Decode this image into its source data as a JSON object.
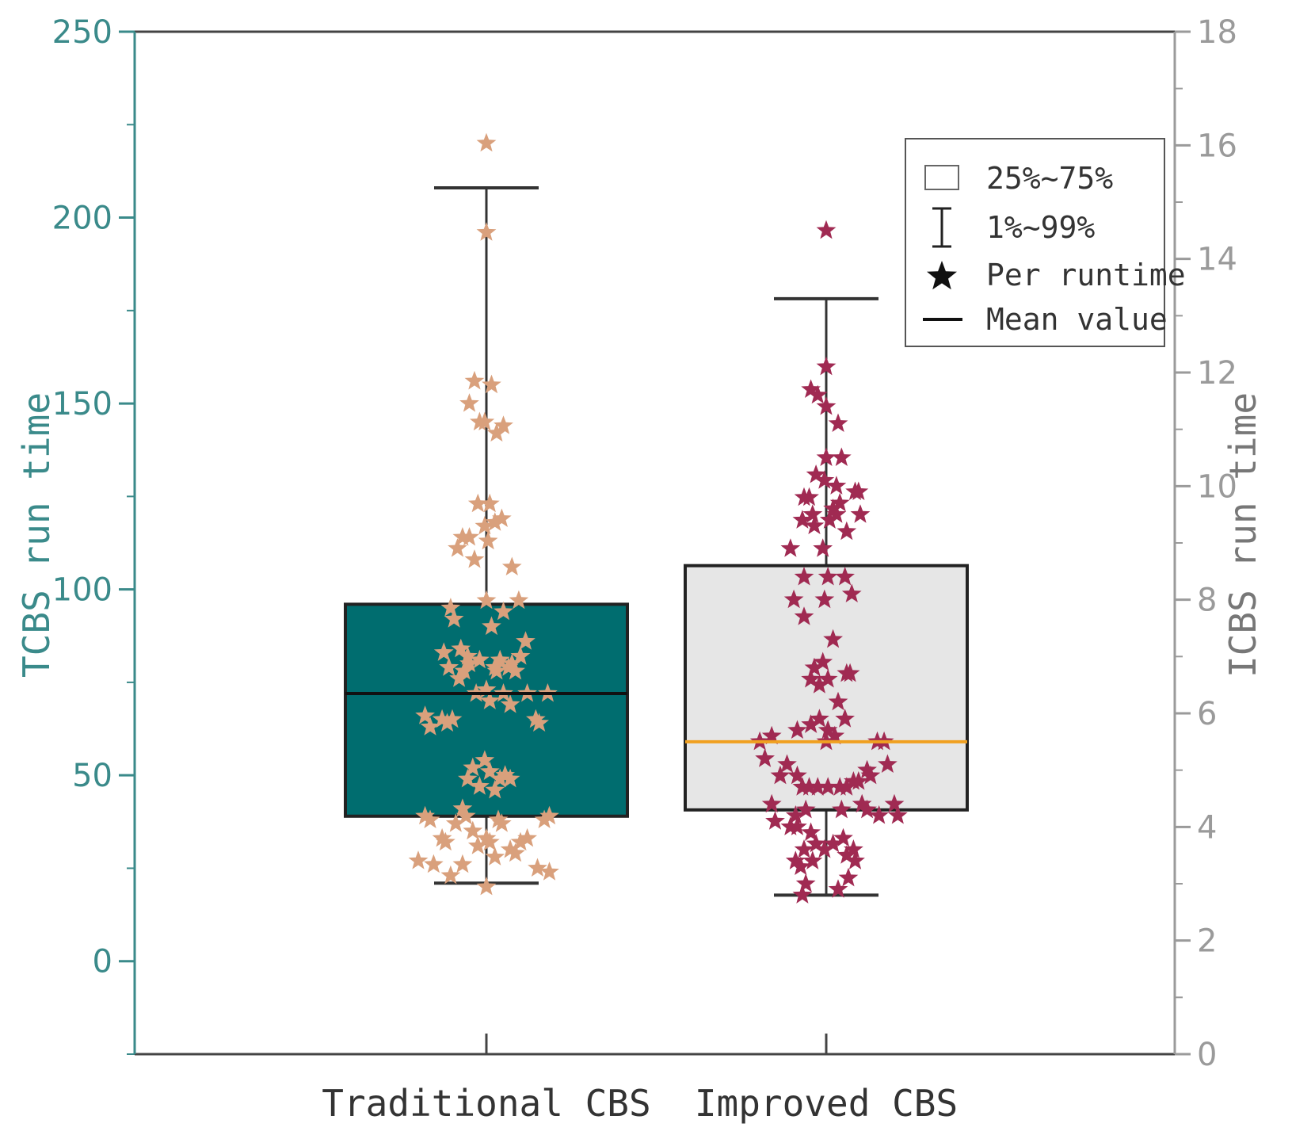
{
  "colors": {
    "left_axis": "#3a8a8a",
    "right_axis": "#9a9a9a",
    "frame": "#444444",
    "box_traditional": "#006d6f",
    "box_improved": "#e6e6e6",
    "points_traditional": "#d9a07c",
    "points_improved": "#a02a52",
    "mean_traditional": "#111111",
    "mean_improved": "#f0a020",
    "whisker": "#333333"
  },
  "chart_data": {
    "type": "box",
    "y_left": {
      "label": "TCBS run time",
      "ylim": [
        -25,
        250
      ],
      "ticks": [
        0,
        50,
        100,
        150,
        200,
        250
      ]
    },
    "y_right": {
      "label": "ICBS run time",
      "ylim": [
        0,
        18
      ],
      "ticks": [
        0,
        2,
        4,
        6,
        8,
        10,
        12,
        14,
        16,
        18
      ]
    },
    "categories": [
      "Traditional CBS",
      "Improved CBS"
    ],
    "legend": {
      "position": "top-right",
      "items": [
        {
          "symbol": "box",
          "label": "25%~75%"
        },
        {
          "symbol": "whisker",
          "label": "1%~99%"
        },
        {
          "symbol": "star",
          "label": "Per runtime"
        },
        {
          "symbol": "line",
          "label": "Mean value"
        }
      ]
    },
    "series": [
      {
        "name": "Traditional CBS",
        "axis": "left",
        "q1": 39,
        "q3": 96,
        "mean": 72,
        "whisker_low": 21,
        "whisker_high": 208,
        "points": [
          [
            0,
            220
          ],
          [
            0,
            196
          ],
          [
            -0.07,
            156
          ],
          [
            0.03,
            155
          ],
          [
            -0.1,
            150
          ],
          [
            -0.04,
            145
          ],
          [
            -0.01,
            145
          ],
          [
            0.1,
            144
          ],
          [
            0.06,
            142
          ],
          [
            -0.05,
            123
          ],
          [
            0.02,
            123
          ],
          [
            -0.01,
            117
          ],
          [
            0.05,
            118
          ],
          [
            0.09,
            119
          ],
          [
            -0.14,
            114
          ],
          [
            -0.1,
            114
          ],
          [
            0.01,
            113
          ],
          [
            -0.07,
            108
          ],
          [
            0.15,
            106
          ],
          [
            -0.17,
            111
          ],
          [
            -0.21,
            95
          ],
          [
            -0.19,
            92
          ],
          [
            0.1,
            94
          ],
          [
            0.0,
            97
          ],
          [
            0.19,
            97
          ],
          [
            0.03,
            90
          ],
          [
            0.23,
            86
          ],
          [
            -0.25,
            83
          ],
          [
            -0.22,
            79
          ],
          [
            -0.15,
            84
          ],
          [
            -0.11,
            82
          ],
          [
            -0.04,
            81
          ],
          [
            0.05,
            79
          ],
          [
            0.08,
            81
          ],
          [
            0.15,
            80
          ],
          [
            0.2,
            82
          ],
          [
            -0.16,
            76
          ],
          [
            -0.13,
            78
          ],
          [
            -0.1,
            80
          ],
          [
            0.06,
            78
          ],
          [
            0.13,
            79
          ],
          [
            0.17,
            78
          ],
          [
            -0.06,
            72
          ],
          [
            0.0,
            73
          ],
          [
            0.02,
            70
          ],
          [
            0.1,
            72
          ],
          [
            0.14,
            69
          ],
          [
            0.24,
            72
          ],
          [
            0.36,
            72
          ],
          [
            -0.36,
            66
          ],
          [
            -0.33,
            63
          ],
          [
            -0.26,
            65
          ],
          [
            -0.23,
            64
          ],
          [
            -0.2,
            65
          ],
          [
            0.29,
            65
          ],
          [
            0.31,
            64
          ],
          [
            -0.11,
            49
          ],
          [
            -0.08,
            52
          ],
          [
            -0.04,
            47
          ],
          [
            -0.01,
            54
          ],
          [
            0.02,
            51
          ],
          [
            0.05,
            46
          ],
          [
            0.08,
            49
          ],
          [
            0.11,
            50
          ],
          [
            0.14,
            49
          ],
          [
            -0.36,
            39
          ],
          [
            -0.33,
            38
          ],
          [
            -0.14,
            41
          ],
          [
            -0.12,
            39
          ],
          [
            0.07,
            38
          ],
          [
            0.09,
            37
          ],
          [
            0.34,
            38
          ],
          [
            0.37,
            39
          ],
          [
            -0.18,
            37
          ],
          [
            -0.26,
            33
          ],
          [
            -0.24,
            32
          ],
          [
            -0.08,
            35
          ],
          [
            -0.05,
            31
          ],
          [
            0.0,
            33
          ],
          [
            0.02,
            32
          ],
          [
            0.05,
            28
          ],
          [
            0.14,
            30
          ],
          [
            0.17,
            29
          ],
          [
            0.2,
            32
          ],
          [
            0.24,
            33
          ],
          [
            -0.4,
            27
          ],
          [
            -0.31,
            26
          ],
          [
            -0.21,
            23
          ],
          [
            -0.14,
            26
          ],
          [
            0.3,
            25
          ],
          [
            0.37,
            24
          ],
          [
            0.0,
            20
          ]
        ]
      },
      {
        "name": "Improved CBS",
        "axis": "right",
        "q1": 4.3,
        "q3": 8.6,
        "mean": 5.5,
        "whisker_low": 2.8,
        "whisker_high": 13.3,
        "points": [
          [
            0,
            14.5
          ],
          [
            0,
            12.1
          ],
          [
            -0.09,
            11.7
          ],
          [
            -0.05,
            11.6
          ],
          [
            0,
            11.4
          ],
          [
            0.07,
            11.1
          ],
          [
            0.09,
            10.5
          ],
          [
            0,
            10.5
          ],
          [
            -0.06,
            10.2
          ],
          [
            -0.01,
            10.1
          ],
          [
            0.06,
            10.0
          ],
          [
            0.17,
            9.9
          ],
          [
            0.19,
            9.9
          ],
          [
            -0.13,
            9.8
          ],
          [
            -0.1,
            9.8
          ],
          [
            0.08,
            9.7
          ],
          [
            0.04,
            9.6
          ],
          [
            -0.08,
            9.5
          ],
          [
            -0.14,
            9.4
          ],
          [
            0.02,
            9.4
          ],
          [
            0.06,
            9.5
          ],
          [
            0.2,
            9.5
          ],
          [
            -0.07,
            9.3
          ],
          [
            0.12,
            9.2
          ],
          [
            -0.02,
            8.9
          ],
          [
            -0.21,
            8.9
          ],
          [
            -0.13,
            8.4
          ],
          [
            0.01,
            8.4
          ],
          [
            0.11,
            8.4
          ],
          [
            0.15,
            8.1
          ],
          [
            -0.19,
            8.0
          ],
          [
            -0.01,
            8.0
          ],
          [
            -0.13,
            7.7
          ],
          [
            0.04,
            7.3
          ],
          [
            -0.02,
            6.9
          ],
          [
            -0.07,
            6.8
          ],
          [
            0.12,
            6.7
          ],
          [
            0.14,
            6.7
          ],
          [
            -0.09,
            6.6
          ],
          [
            0.01,
            6.6
          ],
          [
            -0.04,
            6.5
          ],
          [
            0.07,
            6.2
          ],
          [
            -0.04,
            5.9
          ],
          [
            0.01,
            5.7
          ],
          [
            0.11,
            5.9
          ],
          [
            -0.17,
            5.7
          ],
          [
            -0.09,
            5.8
          ],
          [
            0.05,
            5.6
          ],
          [
            0.0,
            5.5
          ],
          [
            -0.32,
            5.6
          ],
          [
            -0.39,
            5.5
          ],
          [
            -0.36,
            5.2
          ],
          [
            0.3,
            5.5
          ],
          [
            0.34,
            5.5
          ],
          [
            -0.23,
            5.1
          ],
          [
            -0.27,
            4.9
          ],
          [
            -0.17,
            4.9
          ],
          [
            0.24,
            5.0
          ],
          [
            0.26,
            4.9
          ],
          [
            0.36,
            5.1
          ],
          [
            -0.14,
            4.7
          ],
          [
            -0.1,
            4.7
          ],
          [
            -0.05,
            4.7
          ],
          [
            0.01,
            4.7
          ],
          [
            0.08,
            4.7
          ],
          [
            0.12,
            4.7
          ],
          [
            0.16,
            4.8
          ],
          [
            0.19,
            4.8
          ],
          [
            -0.32,
            4.4
          ],
          [
            -0.3,
            4.1
          ],
          [
            -0.18,
            4.2
          ],
          [
            -0.12,
            4.3
          ],
          [
            0.09,
            4.3
          ],
          [
            0.21,
            4.4
          ],
          [
            0.24,
            4.3
          ],
          [
            0.31,
            4.2
          ],
          [
            0.4,
            4.4
          ],
          [
            0.42,
            4.2
          ],
          [
            -0.21,
            4.0
          ],
          [
            -0.17,
            4.0
          ],
          [
            -0.09,
            3.9
          ],
          [
            -0.13,
            3.6
          ],
          [
            -0.06,
            3.7
          ],
          [
            -0.01,
            3.6
          ],
          [
            0.04,
            3.7
          ],
          [
            0.1,
            3.8
          ],
          [
            0.16,
            3.6
          ],
          [
            -0.18,
            3.4
          ],
          [
            -0.15,
            3.3
          ],
          [
            -0.08,
            3.4
          ],
          [
            0.12,
            3.5
          ],
          [
            0.17,
            3.4
          ],
          [
            0.13,
            3.1
          ],
          [
            -0.12,
            3.0
          ],
          [
            -0.14,
            2.8
          ],
          [
            0.07,
            2.9
          ]
        ]
      }
    ]
  }
}
